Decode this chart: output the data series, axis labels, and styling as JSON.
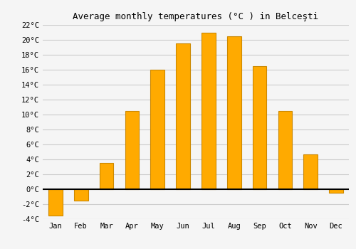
{
  "months": [
    "Jan",
    "Feb",
    "Mar",
    "Apr",
    "May",
    "Jun",
    "Jul",
    "Aug",
    "Sep",
    "Oct",
    "Nov",
    "Dec"
  ],
  "values": [
    -3.5,
    -1.5,
    3.5,
    10.5,
    16.0,
    19.5,
    21.0,
    20.5,
    16.5,
    10.5,
    4.7,
    -0.5
  ],
  "bar_color": "#FFAA00",
  "bar_edge_color": "#CC8800",
  "title": "Average monthly temperatures (°C ) in Belceşti",
  "ylim": [
    -4,
    22
  ],
  "yticks": [
    -4,
    -2,
    0,
    2,
    4,
    6,
    8,
    10,
    12,
    14,
    16,
    18,
    20,
    22
  ],
  "ytick_labels": [
    "-4°C",
    "-2°C",
    "0°C",
    "2°C",
    "4°C",
    "6°C",
    "8°C",
    "10°C",
    "12°C",
    "14°C",
    "16°C",
    "18°C",
    "20°C",
    "22°C"
  ],
  "background_color": "#f5f5f5",
  "grid_color": "#cccccc",
  "title_fontsize": 9,
  "tick_fontsize": 7.5,
  "bar_width": 0.55
}
